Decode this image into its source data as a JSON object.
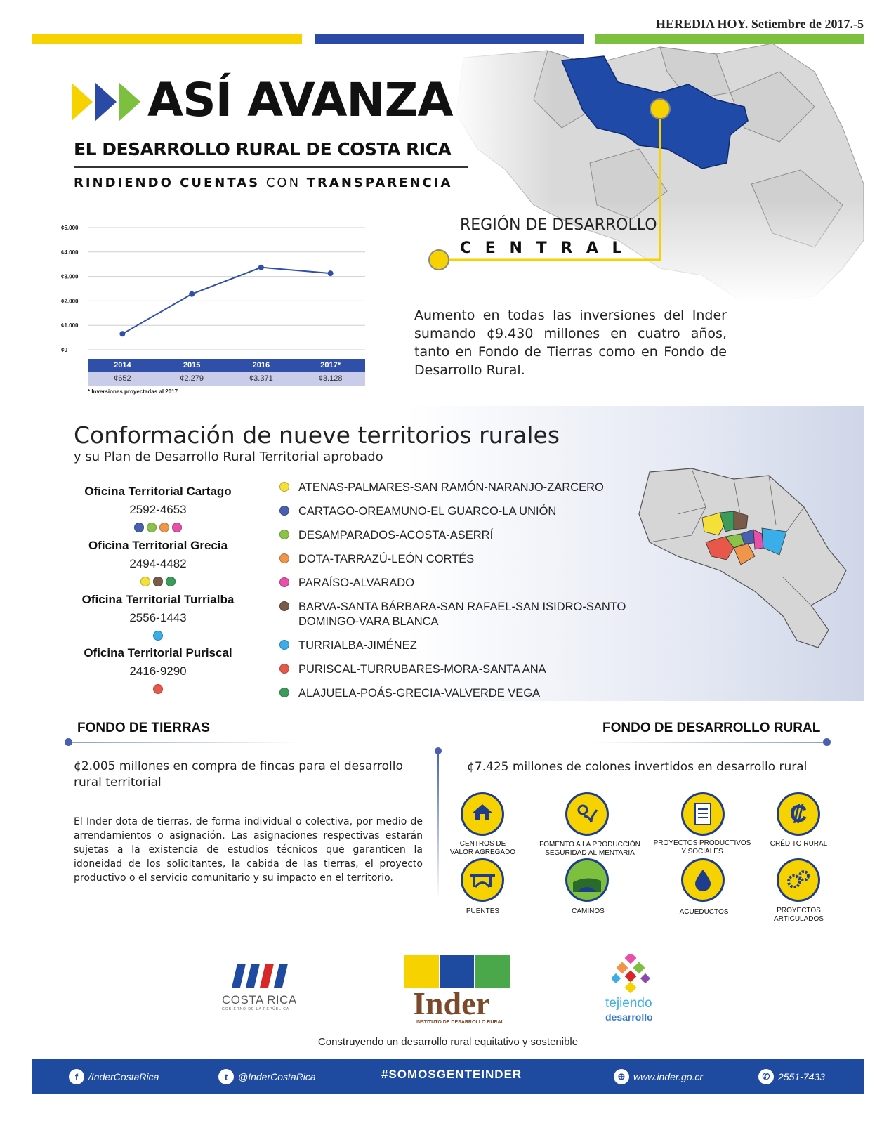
{
  "header": {
    "masthead": "HEREDIA HOY. Setiembre de 2017.-5",
    "colors": {
      "yellow": "#f5d200",
      "blue": "#2a4aa5",
      "green": "#7dbf3f"
    }
  },
  "hero": {
    "title": "ASÍ AVANZA",
    "subtitle": "EL DESARROLLO RURAL DE COSTA RICA",
    "tagline_1": "RINDIENDO CUENTAS",
    "tagline_2": "CON",
    "tagline_3": "TRANSPARENCIA"
  },
  "region": {
    "line1": "REGIÓN DE DESARROLLO",
    "line2": "C E N T R A L"
  },
  "summary": "Aumento en todas las inversiones del Inder sumando ¢9.430 millones en cuatro años, tanto en Fondo de Tierras como en Fondo de Desarrollo Rural.",
  "chart_data": {
    "type": "line",
    "title": "",
    "categories": [
      "2014",
      "2015",
      "2016",
      "2017*"
    ],
    "values": [
      652,
      2279,
      3371,
      3128
    ],
    "value_labels": [
      "¢652",
      "¢2.279",
      "¢3.371",
      "¢3.128"
    ],
    "y_ticks": [
      "¢5.000",
      "¢4.000",
      "¢3.000",
      "¢2.000",
      "¢1.000",
      "¢0"
    ],
    "ylim": [
      0,
      5000
    ],
    "grid": true,
    "footnote": "* Inversiones proyectadas al 2017"
  },
  "territories_section": {
    "title": "Conformación de nueve territorios rurales",
    "subtitle": "y su Plan de Desarrollo Rural Territorial aprobado",
    "offices": [
      {
        "name": "Oficina Territorial Cartago",
        "phone": "2592-4653",
        "dots": [
          "#4a5fb0",
          "#8bc34a",
          "#f0954a",
          "#e84fa8"
        ]
      },
      {
        "name": "Oficina Territorial Grecia",
        "phone": "2494-4482",
        "dots": [
          "#f5e03a",
          "#7a5a48",
          "#3a9c5a"
        ]
      },
      {
        "name": "Oficina Territorial Turrialba",
        "phone": "2556-1443",
        "dots": [
          "#3aaee8"
        ]
      },
      {
        "name": "Oficina Territorial Puriscal",
        "phone": "2416-9290",
        "dots": [
          "#e8584a"
        ]
      }
    ],
    "territories": [
      {
        "name": "ATENAS-PALMARES-SAN RAMÓN-NARANJO-ZARCERO",
        "color": "#f5e03a"
      },
      {
        "name": "CARTAGO-OREAMUNO-EL GUARCO-LA UNIÓN",
        "color": "#4a5fb0"
      },
      {
        "name": "DESAMPARADOS-ACOSTA-ASERRÍ",
        "color": "#8bc34a"
      },
      {
        "name": "DOTA-TARRAZÚ-LEÓN CORTÉS",
        "color": "#f0954a"
      },
      {
        "name": "PARAÍSO-ALVARADO",
        "color": "#e84fa8"
      },
      {
        "name": "BARVA-SANTA BÁRBARA-SAN RAFAEL-SAN ISIDRO-SANTO DOMINGO-VARA BLANCA",
        "color": "#7a5a48"
      },
      {
        "name": "TURRIALBA-JIMÉNEZ",
        "color": "#3aaee8"
      },
      {
        "name": "PURISCAL-TURRUBARES-MORA-SANTA ANA",
        "color": "#e8584a"
      },
      {
        "name": "ALAJUELA-POÁS-GRECIA-VALVERDE VEGA",
        "color": "#3a9c5a"
      }
    ]
  },
  "fondo_tierras": {
    "title": "FONDO DE TIERRAS",
    "headline": "¢2.005 millones en compra de fincas para el desarrollo rural territorial",
    "body": "El Inder dota de tierras, de forma individual o colectiva, por medio de arrendamientos o asignación. Las asignaciones respectivas estarán sujetas a la existencia de estudios técnicos que garanticen la idoneidad de los solicitantes, la cabida de las tierras, el proyecto productivo o el servicio comunitario y su impacto en el territorio."
  },
  "fondo_desarrollo": {
    "title": "FONDO DE DESARROLLO RURAL",
    "headline": "¢7.425 millones de colones invertidos en desarrollo rural",
    "items": [
      {
        "label": "CENTROS DE VALOR AGREGADO",
        "icon": "house-hand-icon"
      },
      {
        "label": "FOMENTO A LA PRODUCCIÓN SEGURIDAD ALIMENTARIA",
        "icon": "plant-gear-icon"
      },
      {
        "label": "PROYECTOS PRODUCTIVOS Y SOCIALES",
        "icon": "document-icon"
      },
      {
        "label": "CRÉDITO RURAL",
        "icon": "colon-icon",
        "symbol": "₡"
      },
      {
        "label": "PUENTES",
        "icon": "bridge-icon"
      },
      {
        "label": "CAMINOS",
        "icon": "road-icon"
      },
      {
        "label": "ACUEDUCTOS",
        "icon": "water-drop-icon"
      },
      {
        "label": "PROYECTOS ARTICULADOS",
        "icon": "gears-icon"
      }
    ]
  },
  "logos": {
    "gov": "COSTA RICA",
    "gov_sub": "GOBIERNO DE LA REPÚBLICA",
    "inder": "Inder",
    "inder_sub": "INSTITUTO DE DESARROLLO RURAL",
    "tejiendo_1": "tejiendo",
    "tejiendo_2": "desarrollo"
  },
  "slogan": "Construyendo un desarrollo rural equitativo y sostenible",
  "footer": {
    "facebook": "/InderCostaRica",
    "twitter": "@InderCostaRica",
    "hashtag": "#SOMOSGENTEINDER",
    "web": "www.inder.go.cr",
    "phone": "2551-7433"
  }
}
